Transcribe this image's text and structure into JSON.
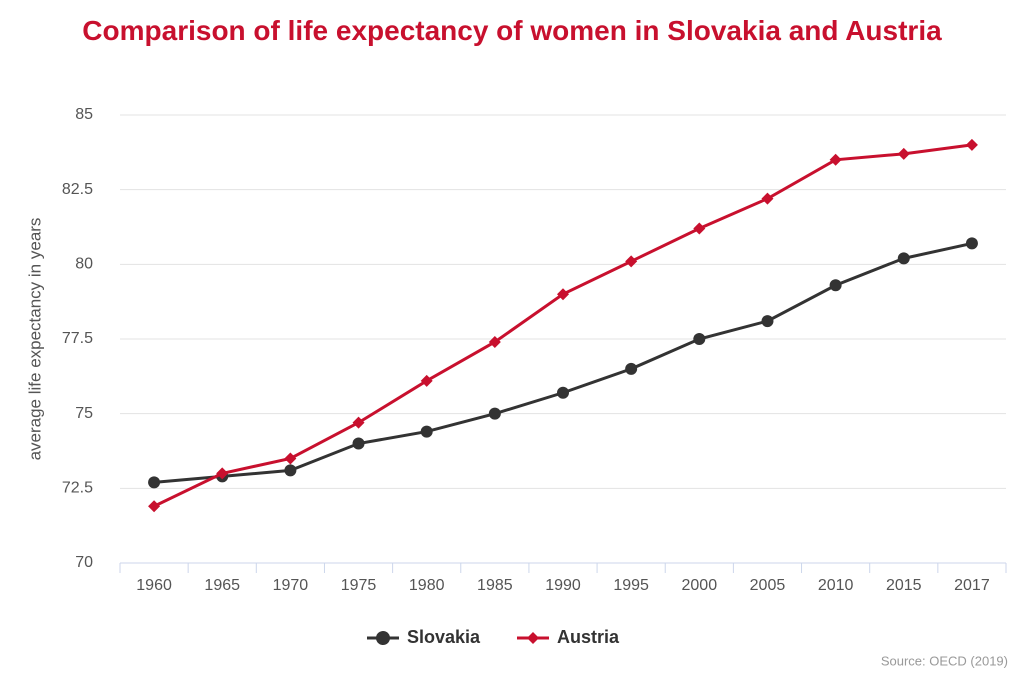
{
  "chart_data": {
    "type": "line",
    "title": "Comparison of life expectancy of women in Slovakia and Austria",
    "y_label": "average life expectancy in years",
    "source": "Source: OECD (2019)",
    "categories": [
      "1960",
      "1965",
      "1970",
      "1975",
      "1980",
      "1985",
      "1990",
      "1995",
      "2000",
      "2005",
      "2010",
      "2015",
      "2017"
    ],
    "series": [
      {
        "name": "Slovakia",
        "color": "#333333",
        "marker": "circle",
        "values": [
          72.7,
          72.9,
          73.1,
          74.0,
          74.4,
          75.0,
          75.7,
          76.5,
          77.5,
          78.1,
          79.3,
          80.2,
          80.7
        ]
      },
      {
        "name": "Austria",
        "color": "#c8102e",
        "marker": "diamond",
        "values": [
          71.9,
          73.0,
          73.5,
          74.7,
          76.1,
          77.4,
          79.0,
          80.1,
          81.2,
          82.2,
          83.5,
          83.7,
          84.0
        ]
      }
    ],
    "ylim": [
      70,
      85
    ],
    "yticks": [
      70,
      72.5,
      75,
      77.5,
      80,
      82.5,
      85
    ],
    "grid": true,
    "legend": "bottom"
  }
}
